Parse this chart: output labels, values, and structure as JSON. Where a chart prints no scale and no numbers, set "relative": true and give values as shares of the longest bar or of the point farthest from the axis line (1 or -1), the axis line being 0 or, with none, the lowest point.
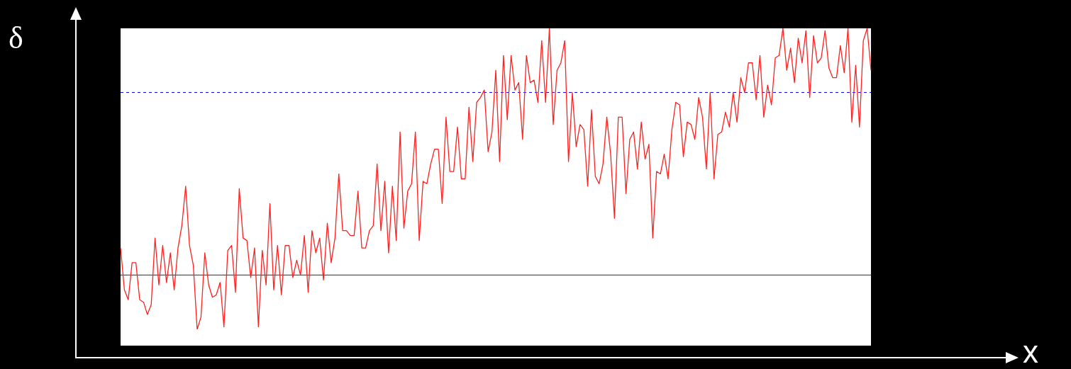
{
  "chart_data": {
    "type": "line",
    "relative": true,
    "xlabel": "x",
    "ylabel": "δ",
    "categories": [
      null,
      null,
      null,
      null,
      null,
      null,
      null,
      null,
      null,
      null,
      null,
      null,
      null,
      null,
      null,
      null,
      null,
      null,
      null,
      null,
      null,
      null,
      null,
      null,
      null,
      null,
      null,
      null,
      null,
      null,
      null,
      null,
      null,
      null,
      null,
      null,
      null,
      null,
      null,
      null,
      null,
      null,
      null,
      null,
      null,
      null,
      null,
      null,
      null,
      null,
      null,
      null,
      null,
      null,
      null,
      null,
      null,
      null,
      null,
      null,
      null,
      null,
      null,
      null,
      null,
      null,
      null,
      null,
      null,
      null,
      null,
      null,
      null,
      null,
      null,
      null,
      null,
      null,
      null,
      null,
      null,
      null,
      null,
      null,
      null,
      null,
      null,
      null,
      null,
      null,
      null,
      null,
      null,
      null,
      null,
      null,
      null,
      null,
      null,
      null,
      null,
      null,
      null,
      null,
      null,
      null,
      null,
      null,
      null,
      null,
      null,
      null,
      null,
      null,
      null,
      null,
      null,
      null,
      null,
      null,
      null,
      null,
      null,
      null,
      null,
      null,
      null,
      null,
      null,
      null,
      null,
      null,
      null,
      null,
      null,
      null,
      null,
      null,
      null,
      null,
      null,
      null,
      null,
      null,
      null,
      null,
      null,
      null,
      null,
      null,
      null,
      null,
      null,
      null,
      null,
      null,
      null,
      null,
      null,
      null,
      null,
      null,
      null,
      null,
      null,
      null,
      null,
      null,
      null,
      null,
      null,
      null,
      null,
      null,
      null,
      null,
      null,
      null,
      null,
      null,
      null,
      null,
      null,
      null,
      null,
      null,
      null,
      null,
      null,
      null,
      null,
      null,
      null,
      null,
      null,
      null,
      null
    ],
    "series": [
      {
        "color": "#ff2020",
        "values": [
          0.11,
          -0.06,
          -0.1,
          0.05,
          0.05,
          -0.1,
          -0.11,
          -0.16,
          -0.12,
          0.15,
          -0.04,
          0.12,
          -0.03,
          0.09,
          -0.06,
          0.11,
          0.2,
          0.36,
          0.12,
          0.04,
          -0.22,
          -0.17,
          0.09,
          -0.04,
          -0.09,
          -0.08,
          -0.03,
          -0.21,
          0.1,
          0.12,
          -0.07,
          0.35,
          0.15,
          0.14,
          -0.01,
          0.11,
          -0.21,
          0.1,
          -0.04,
          0.29,
          -0.06,
          0.12,
          -0.08,
          0.12,
          0.12,
          -0.01,
          0.06,
          0.0,
          0.16,
          -0.07,
          0.18,
          0.09,
          0.15,
          -0.02,
          0.21,
          0.05,
          0.15,
          0.41,
          0.18,
          0.18,
          0.16,
          0.16,
          0.34,
          0.11,
          0.11,
          0.18,
          0.2,
          0.45,
          0.18,
          0.38,
          0.09,
          0.36,
          0.14,
          0.58,
          0.19,
          0.34,
          0.37,
          0.58,
          0.14,
          0.38,
          0.37,
          0.45,
          0.51,
          0.51,
          0.29,
          0.64,
          0.42,
          0.42,
          0.6,
          0.39,
          0.39,
          0.68,
          0.46,
          0.7,
          0.72,
          0.75,
          0.5,
          0.58,
          0.83,
          0.46,
          0.89,
          0.63,
          0.89,
          0.75,
          0.78,
          0.55,
          0.89,
          0.78,
          0.79,
          0.7,
          0.95,
          0.7,
          1.0,
          0.61,
          0.83,
          0.86,
          0.95,
          0.46,
          0.74,
          0.52,
          0.61,
          0.59,
          0.36,
          0.67,
          0.4,
          0.37,
          0.45,
          0.64,
          0.49,
          0.23,
          0.64,
          0.64,
          0.33,
          0.55,
          0.58,
          0.43,
          0.62,
          0.47,
          0.53,
          0.15,
          0.42,
          0.41,
          0.49,
          0.39,
          0.59,
          0.7,
          0.69,
          0.48,
          0.62,
          0.61,
          0.55,
          0.72,
          0.64,
          0.43,
          0.74,
          0.39,
          0.57,
          0.58,
          0.66,
          0.6,
          0.74,
          0.62,
          0.8,
          0.74,
          0.86,
          0.86,
          0.71,
          0.89,
          0.64,
          0.77,
          0.69,
          0.88,
          0.89,
          1.0,
          0.83,
          0.92,
          0.78,
          0.96,
          0.86,
          0.99,
          0.72,
          0.97,
          0.86,
          0.88,
          0.99,
          0.84,
          0.8,
          0.8,
          0.93,
          0.82,
          1.0,
          0.62,
          0.85,
          0.6,
          0.95,
          1.0,
          0.83
        ]
      }
    ],
    "ref_lines": [
      {
        "axis": "y",
        "value": 0.74,
        "color": "#0000ff",
        "line_style": "dashed"
      }
    ]
  }
}
